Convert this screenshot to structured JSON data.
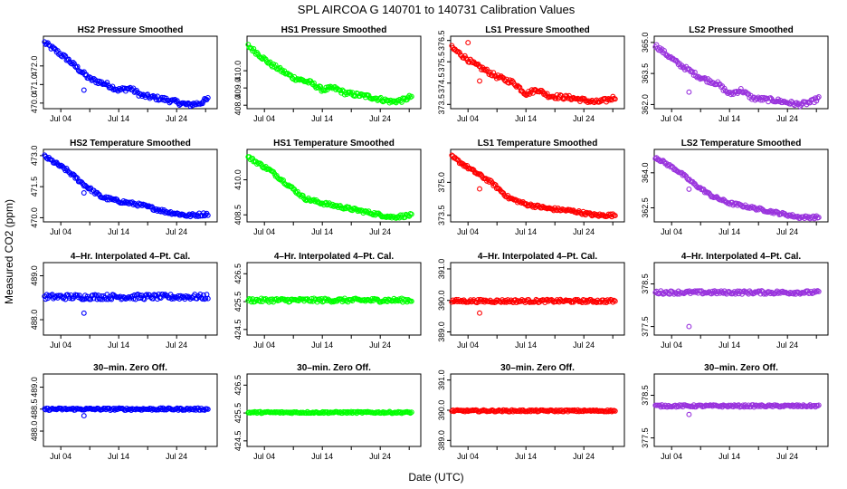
{
  "figure": {
    "title": "SPL   AIRCOA G   140701 to 140731   Calibration Values",
    "xlabel": "Date (UTC)",
    "ylabel": "Measured CO2 (ppm)"
  },
  "colors": {
    "HS2": "#0000ff",
    "HS1": "#00ff00",
    "LS1": "#ff0000",
    "LS2": "#9933dd",
    "axis": "#000000"
  },
  "chart_data": [
    {
      "type": "scatter",
      "title": "HS2 Pressure Smoothed",
      "series": "HS2",
      "row": 0,
      "col": 0,
      "ylim": [
        469.7,
        473.6
      ],
      "yticks": [
        470.0,
        471.0,
        472.0
      ],
      "xticks": [
        4,
        14,
        24
      ],
      "xticklabels": [
        "Jul 04",
        "Jul 14",
        "Jul 24"
      ],
      "xlim": [
        1,
        31
      ],
      "trend": [
        [
          1,
          473.3
        ],
        [
          5,
          472.4
        ],
        [
          9,
          471.3
        ],
        [
          12,
          471.0
        ],
        [
          14,
          470.7
        ],
        [
          16,
          470.8
        ],
        [
          18,
          470.4
        ],
        [
          22,
          470.2
        ],
        [
          26,
          469.9
        ],
        [
          28,
          470.0
        ],
        [
          30,
          470.3
        ]
      ],
      "jitter": 0.12,
      "outliers": [
        [
          8,
          470.7
        ]
      ]
    },
    {
      "type": "scatter",
      "title": "HS1 Pressure Smoothed",
      "series": "HS1",
      "row": 0,
      "col": 1,
      "ylim": [
        407.8,
        412.0
      ],
      "yticks": [
        408.0,
        409.0,
        410.0
      ],
      "xticks": [
        4,
        14,
        24
      ],
      "xticklabels": [
        "Jul 04",
        "Jul 14",
        "Jul 24"
      ],
      "xlim": [
        1,
        31
      ],
      "trend": [
        [
          1,
          411.5
        ],
        [
          5,
          410.4
        ],
        [
          9,
          409.6
        ],
        [
          12,
          409.3
        ],
        [
          14,
          408.9
        ],
        [
          16,
          409.0
        ],
        [
          18,
          408.7
        ],
        [
          22,
          408.5
        ],
        [
          26,
          408.2
        ],
        [
          28,
          408.3
        ],
        [
          30,
          408.6
        ]
      ],
      "jitter": 0.12,
      "outliers": []
    },
    {
      "type": "scatter",
      "title": "LS1 Pressure Smoothed",
      "series": "LS1",
      "row": 0,
      "col": 2,
      "ylim": [
        373.3,
        376.7
      ],
      "yticks": [
        373.5,
        374.5,
        375.5,
        376.5
      ],
      "xticks": [
        4,
        14,
        24
      ],
      "xticklabels": [
        "Jul 04",
        "Jul 14",
        "Jul 24"
      ],
      "xlim": [
        1,
        31
      ],
      "trend": [
        [
          1,
          376.2
        ],
        [
          5,
          375.4
        ],
        [
          9,
          374.8
        ],
        [
          12,
          374.5
        ],
        [
          14,
          374.0
        ],
        [
          16,
          374.2
        ],
        [
          18,
          373.9
        ],
        [
          22,
          373.8
        ],
        [
          26,
          373.6
        ],
        [
          28,
          373.7
        ],
        [
          30,
          373.9
        ]
      ],
      "jitter": 0.1,
      "outliers": [
        [
          4,
          376.4
        ],
        [
          6,
          374.6
        ]
      ]
    },
    {
      "type": "scatter",
      "title": "LS2 Pressure Smoothed",
      "series": "LS2",
      "row": 0,
      "col": 3,
      "ylim": [
        361.8,
        365.3
      ],
      "yticks": [
        362.0,
        363.5,
        365.0
      ],
      "xticks": [
        4,
        14,
        24
      ],
      "xticklabels": [
        "Jul 04",
        "Jul 14",
        "Jul 24"
      ],
      "xlim": [
        1,
        31
      ],
      "trend": [
        [
          1,
          364.9
        ],
        [
          5,
          364.0
        ],
        [
          9,
          363.3
        ],
        [
          12,
          363.0
        ],
        [
          14,
          362.5
        ],
        [
          16,
          362.7
        ],
        [
          18,
          362.3
        ],
        [
          22,
          362.2
        ],
        [
          26,
          362.0
        ],
        [
          28,
          362.1
        ],
        [
          30,
          362.4
        ]
      ],
      "jitter": 0.1,
      "outliers": [
        [
          7,
          362.6
        ]
      ]
    },
    {
      "type": "scatter",
      "title": "HS2 Temperature Smoothed",
      "series": "HS2",
      "row": 1,
      "col": 0,
      "ylim": [
        469.8,
        473.3
      ],
      "yticks": [
        470.0,
        471.5,
        473.0
      ],
      "xticks": [
        4,
        14,
        24
      ],
      "xticklabels": [
        "Jul 04",
        "Jul 14",
        "Jul 24"
      ],
      "xlim": [
        1,
        31
      ],
      "trend": [
        [
          1,
          473.0
        ],
        [
          5,
          472.3
        ],
        [
          8,
          471.6
        ],
        [
          11,
          471.0
        ],
        [
          14,
          470.8
        ],
        [
          18,
          470.6
        ],
        [
          22,
          470.3
        ],
        [
          26,
          470.1
        ],
        [
          30,
          470.2
        ]
      ],
      "jitter": 0.08,
      "outliers": [
        [
          8,
          471.2
        ]
      ]
    },
    {
      "type": "scatter",
      "title": "HS1 Temperature Smoothed",
      "series": "HS1",
      "row": 1,
      "col": 1,
      "ylim": [
        408.2,
        411.3
      ],
      "yticks": [
        408.5,
        410.0
      ],
      "xticks": [
        4,
        14,
        24
      ],
      "xticklabels": [
        "Jul 04",
        "Jul 14",
        "Jul 24"
      ],
      "xlim": [
        1,
        31
      ],
      "trend": [
        [
          1,
          411.0
        ],
        [
          5,
          410.4
        ],
        [
          8,
          409.8
        ],
        [
          11,
          409.2
        ],
        [
          14,
          409.0
        ],
        [
          18,
          408.8
        ],
        [
          22,
          408.6
        ],
        [
          26,
          408.4
        ],
        [
          30,
          408.5
        ]
      ],
      "jitter": 0.07,
      "outliers": []
    },
    {
      "type": "scatter",
      "title": "LS1 Temperature Smoothed",
      "series": "LS1",
      "row": 1,
      "col": 2,
      "ylim": [
        373.2,
        376.5
      ],
      "yticks": [
        373.5,
        375.0
      ],
      "xticks": [
        4,
        14,
        24
      ],
      "xticklabels": [
        "Jul 04",
        "Jul 14",
        "Jul 24"
      ],
      "xlim": [
        1,
        31
      ],
      "trend": [
        [
          1,
          376.2
        ],
        [
          5,
          375.5
        ],
        [
          8,
          375.0
        ],
        [
          11,
          374.3
        ],
        [
          14,
          374.0
        ],
        [
          18,
          373.8
        ],
        [
          22,
          373.7
        ],
        [
          26,
          373.5
        ],
        [
          30,
          373.5
        ]
      ],
      "jitter": 0.07,
      "outliers": [
        [
          6,
          374.7
        ]
      ]
    },
    {
      "type": "scatter",
      "title": "LS2 Temperature Smoothed",
      "series": "LS2",
      "row": 1,
      "col": 3,
      "ylim": [
        361.9,
        365.0
      ],
      "yticks": [
        362.5,
        364.0
      ],
      "xticks": [
        4,
        14,
        24
      ],
      "xticklabels": [
        "Jul 04",
        "Jul 14",
        "Jul 24"
      ],
      "xlim": [
        1,
        31
      ],
      "trend": [
        [
          1,
          364.7
        ],
        [
          5,
          364.1
        ],
        [
          8,
          363.5
        ],
        [
          11,
          363.0
        ],
        [
          14,
          362.7
        ],
        [
          18,
          362.5
        ],
        [
          22,
          362.3
        ],
        [
          26,
          362.1
        ],
        [
          30,
          362.1
        ]
      ],
      "jitter": 0.06,
      "outliers": [
        [
          7,
          363.3
        ]
      ]
    },
    {
      "type": "scatter",
      "title": "4–Hr. Interpolated 4–Pt. Cal.",
      "series": "HS2",
      "row": 2,
      "col": 0,
      "ylim": [
        487.65,
        489.3
      ],
      "yticks": [
        488.0,
        489.0
      ],
      "xticks": [
        4,
        14,
        24
      ],
      "xticklabels": [
        "Jul 04",
        "Jul 14",
        "Jul 24"
      ],
      "xlim": [
        1,
        31
      ],
      "trend": [
        [
          1,
          488.52
        ],
        [
          31,
          488.52
        ]
      ],
      "jitter": 0.06,
      "outliers": [
        [
          8,
          488.15
        ]
      ]
    },
    {
      "type": "scatter",
      "title": "4–Hr. Interpolated 4–Pt. Cal.",
      "series": "HS1",
      "row": 2,
      "col": 1,
      "ylim": [
        424.3,
        426.9
      ],
      "yticks": [
        424.5,
        425.5,
        426.5
      ],
      "xticks": [
        4,
        14,
        24
      ],
      "xticklabels": [
        "Jul 04",
        "Jul 14",
        "Jul 24"
      ],
      "xlim": [
        1,
        31
      ],
      "trend": [
        [
          1,
          425.55
        ],
        [
          31,
          425.55
        ]
      ],
      "jitter": 0.07,
      "outliers": []
    },
    {
      "type": "scatter",
      "title": "4–Hr. Interpolated 4–Pt. Cal.",
      "series": "LS1",
      "row": 2,
      "col": 2,
      "ylim": [
        388.9,
        391.2
      ],
      "yticks": [
        389.0,
        390.0,
        391.0
      ],
      "xticks": [
        4,
        14,
        24
      ],
      "xticklabels": [
        "Jul 04",
        "Jul 14",
        "Jul 24"
      ],
      "xlim": [
        1,
        31
      ],
      "trend": [
        [
          1,
          389.98
        ],
        [
          31,
          389.98
        ]
      ],
      "jitter": 0.05,
      "outliers": [
        [
          6,
          389.6
        ]
      ]
    },
    {
      "type": "scatter",
      "title": "4–Hr. Interpolated 4–Pt. Cal.",
      "series": "LS2",
      "row": 2,
      "col": 3,
      "ylim": [
        377.3,
        379.0
      ],
      "yticks": [
        377.5,
        378.5
      ],
      "xticks": [
        4,
        14,
        24
      ],
      "xticklabels": [
        "Jul 04",
        "Jul 14",
        "Jul 24"
      ],
      "xlim": [
        1,
        31
      ],
      "trend": [
        [
          1,
          378.3
        ],
        [
          31,
          378.3
        ]
      ],
      "jitter": 0.04,
      "outliers": [
        [
          7,
          377.5
        ]
      ]
    },
    {
      "type": "scatter",
      "title": "30–min. Zero Off.",
      "series": "HS2",
      "row": 3,
      "col": 0,
      "ylim": [
        487.65,
        489.3
      ],
      "yticks": [
        488.0,
        488.5,
        489.0
      ],
      "xticks": [
        4,
        14,
        24
      ],
      "xticklabels": [
        "Jul 04",
        "Jul 14",
        "Jul 24"
      ],
      "xlim": [
        1,
        31
      ],
      "trend": [
        [
          1,
          488.5
        ],
        [
          31,
          488.5
        ]
      ],
      "jitter": 0.025,
      "outliers": [
        [
          8,
          488.35
        ]
      ]
    },
    {
      "type": "scatter",
      "title": "30–min. Zero Off.",
      "series": "HS1",
      "row": 3,
      "col": 1,
      "ylim": [
        424.3,
        426.9
      ],
      "yticks": [
        424.5,
        425.5,
        426.5
      ],
      "xticks": [
        4,
        14,
        24
      ],
      "xticklabels": [
        "Jul 04",
        "Jul 14",
        "Jul 24"
      ],
      "xlim": [
        1,
        31
      ],
      "trend": [
        [
          1,
          425.52
        ],
        [
          31,
          425.52
        ]
      ],
      "jitter": 0.03,
      "outliers": []
    },
    {
      "type": "scatter",
      "title": "30–min. Zero Off.",
      "series": "LS1",
      "row": 3,
      "col": 2,
      "ylim": [
        388.8,
        391.2
      ],
      "yticks": [
        389.0,
        390.0,
        391.0
      ],
      "xticks": [
        4,
        14,
        24
      ],
      "xticklabels": [
        "Jul 04",
        "Jul 14",
        "Jul 24"
      ],
      "xlim": [
        1,
        31
      ],
      "trend": [
        [
          1,
          389.98
        ],
        [
          31,
          389.98
        ]
      ],
      "jitter": 0.03,
      "outliers": []
    },
    {
      "type": "scatter",
      "title": "30–min. Zero Off.",
      "series": "LS2",
      "row": 3,
      "col": 3,
      "ylim": [
        377.3,
        379.0
      ],
      "yticks": [
        377.5,
        378.5
      ],
      "xticks": [
        4,
        14,
        24
      ],
      "xticklabels": [
        "Jul 04",
        "Jul 14",
        "Jul 24"
      ],
      "xlim": [
        1,
        31
      ],
      "trend": [
        [
          1,
          378.25
        ],
        [
          31,
          378.25
        ]
      ],
      "jitter": 0.025,
      "outliers": [
        [
          7,
          378.05
        ]
      ]
    }
  ]
}
